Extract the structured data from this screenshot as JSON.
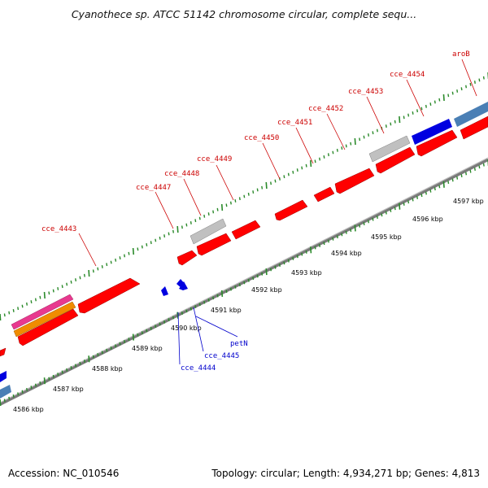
{
  "title": "Cyanothece sp. ATCC 51142 chromosome circular, complete sequ...",
  "footer": {
    "accession": "Accession: NC_010546",
    "stats": "Topology: circular; Length: 4,934,271 bp; Genes: 4,813"
  },
  "colors": {
    "forward_gene": "#ff0000",
    "gray_gene": "#c0c0c0",
    "blue_gene": "#0000e0",
    "steel_gene": "#4a7fb5",
    "pink_gene": "#e8398f",
    "orange_gene": "#f08c00",
    "tick": "#2a8a2a",
    "label_red": "#cc0000",
    "label_blue": "#0000cc"
  },
  "kbp_labels": [
    "4586 kbp",
    "4587 kbp",
    "4588 kbp",
    "4589 kbp",
    "4590 kbp",
    "4591 kbp",
    "4592 kbp",
    "4593 kbp",
    "4594 kbp",
    "4595 kbp",
    "4596 kbp",
    "4597 kbp"
  ],
  "top_labels": [
    "cce_4443",
    "cce_4447",
    "cce_4448",
    "cce_4449",
    "cce_4450",
    "cce_4451",
    "cce_4452",
    "cce_4453",
    "cce_4454",
    "aroB"
  ],
  "bottom_labels": [
    "cce_4444",
    "cce_4445",
    "petN"
  ]
}
